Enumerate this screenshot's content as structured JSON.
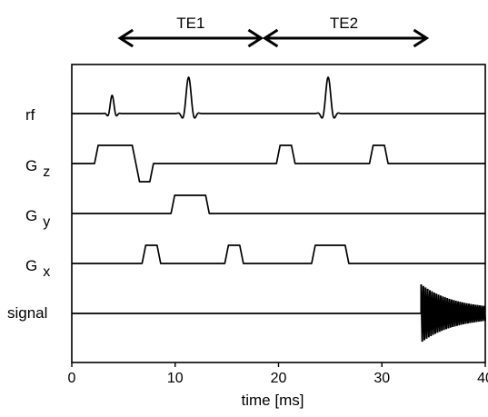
{
  "chart_data": {
    "type": "pulse-sequence-diagram",
    "x_axis": {
      "label": "time [ms]",
      "range": [
        0,
        40
      ],
      "ticks": [
        0,
        10,
        20,
        30,
        40
      ],
      "tick_labels": [
        "0",
        "10",
        "20",
        "30",
        "40"
      ]
    },
    "intervals": [
      {
        "label": "TE1",
        "start": 4.5,
        "end": 18.5
      },
      {
        "label": "TE2",
        "start": 18.5,
        "end": 34.5
      }
    ],
    "channels": [
      {
        "key": "rf",
        "label": "rf",
        "sub": "",
        "events": [
          {
            "kind": "sinc-pulse",
            "center": 3.9,
            "amplitude": "small"
          },
          {
            "kind": "sinc-pulse",
            "center": 11.3,
            "amplitude": "large"
          },
          {
            "kind": "sinc-pulse",
            "center": 24.8,
            "amplitude": "large"
          }
        ]
      },
      {
        "key": "gz",
        "label": "G",
        "sub": "z",
        "events": [
          {
            "kind": "trapezoid",
            "start": 2.2,
            "end": 6.2,
            "polarity": 1
          },
          {
            "kind": "trapezoid",
            "start": 6.2,
            "end": 7.9,
            "polarity": -1
          },
          {
            "kind": "trapezoid",
            "start": 19.8,
            "end": 21.6,
            "polarity": 1
          },
          {
            "kind": "trapezoid",
            "start": 28.8,
            "end": 30.6,
            "polarity": 1
          }
        ]
      },
      {
        "key": "gy",
        "label": "G",
        "sub": "y",
        "events": [
          {
            "kind": "trapezoid",
            "start": 9.6,
            "end": 13.3,
            "polarity": 1
          }
        ]
      },
      {
        "key": "gx",
        "label": "G",
        "sub": "x",
        "events": [
          {
            "kind": "trapezoid",
            "start": 6.8,
            "end": 8.6,
            "polarity": 1
          },
          {
            "kind": "trapezoid",
            "start": 14.8,
            "end": 16.6,
            "polarity": 1
          },
          {
            "kind": "trapezoid",
            "start": 23.2,
            "end": 26.8,
            "polarity": 1
          }
        ]
      },
      {
        "key": "signal",
        "label": "signal",
        "sub": "",
        "events": [
          {
            "kind": "decaying-echo",
            "start": 33.8,
            "end": 40
          }
        ]
      }
    ]
  }
}
